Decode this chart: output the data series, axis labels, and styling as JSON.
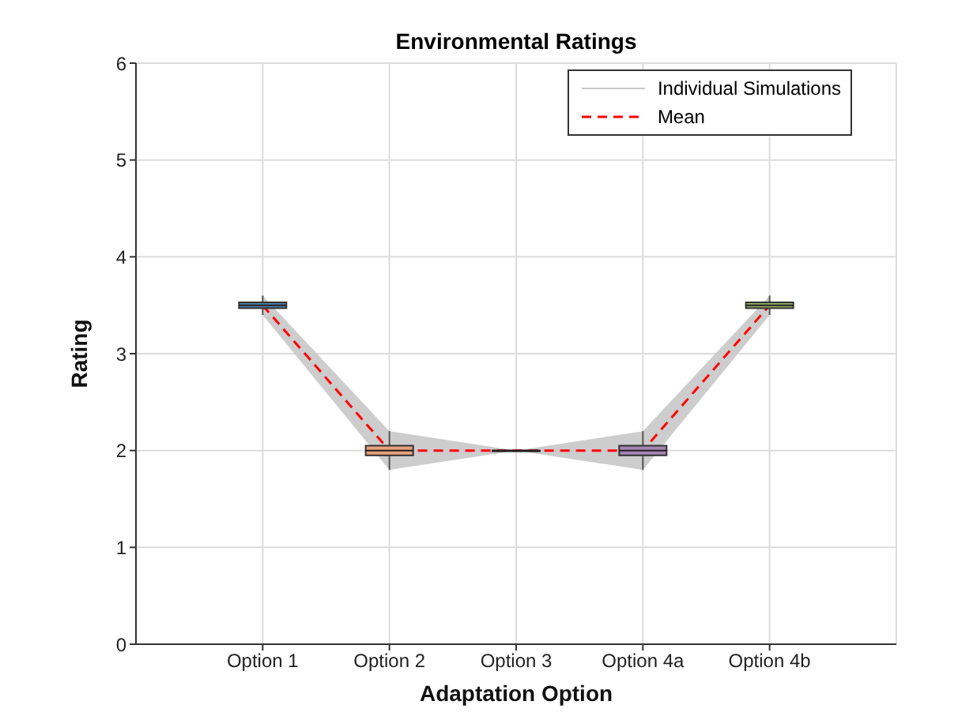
{
  "chart_data": {
    "type": "box",
    "title": "Environmental Ratings",
    "xlabel": "Adaptation Option",
    "ylabel": "Rating",
    "categories": [
      "Option 1",
      "Option 2",
      "Option 3",
      "Option 4a",
      "Option 4b"
    ],
    "colors": [
      "#4f81b0",
      "#e8a07c",
      "#c8c8c8",
      "#a484b4",
      "#98b068"
    ],
    "boxes": [
      {
        "low": 3.4,
        "q1": 3.47,
        "median": 3.5,
        "q3": 3.53,
        "high": 3.6
      },
      {
        "low": 1.8,
        "q1": 1.95,
        "median": 2,
        "q3": 2.05,
        "high": 2.2
      },
      {
        "low": 2,
        "q1": 2,
        "median": 2,
        "q3": 2,
        "high": 2
      },
      {
        "low": 1.8,
        "q1": 1.95,
        "median": 2,
        "q3": 2.05,
        "high": 2.2
      },
      {
        "low": 3.4,
        "q1": 3.47,
        "median": 3.5,
        "q3": 3.53,
        "high": 3.6
      }
    ],
    "series": [
      {
        "name": "Individual Simulations",
        "type": "line",
        "color": "#c8c8c8",
        "values": [
          null,
          null,
          null,
          null,
          null
        ],
        "lower": [
          3.4,
          1.8,
          2,
          1.8,
          3.4
        ],
        "upper": [
          3.6,
          2.2,
          2,
          2.2,
          3.6
        ]
      },
      {
        "name": "Mean",
        "type": "line",
        "color": "#ff0000",
        "line_style": "dashed",
        "values": [
          3.5,
          2,
          2,
          2,
          3.5
        ]
      }
    ],
    "ylim": [
      0,
      6
    ],
    "yticks": [
      0,
      1,
      2,
      3,
      4,
      5,
      6
    ],
    "grid": true,
    "legend": "top right"
  }
}
